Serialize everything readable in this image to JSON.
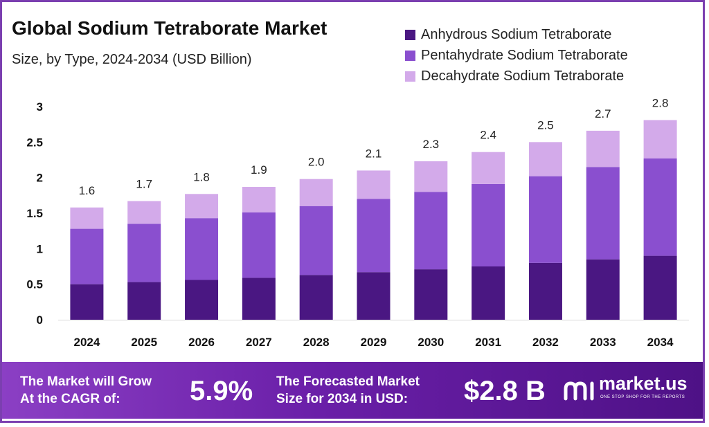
{
  "title": "Global Sodium Tetraborate Market",
  "subtitle": "Size, by Type, 2024-2034 (USD Billion)",
  "chart_data": {
    "type": "bar",
    "stacked": true,
    "categories": [
      "2024",
      "2025",
      "2026",
      "2027",
      "2028",
      "2029",
      "2030",
      "2031",
      "2032",
      "2033",
      "2034"
    ],
    "series": [
      {
        "name": "Anhydrous Sodium Tetraborate",
        "color": "#4a1782",
        "values": [
          0.5,
          0.53,
          0.56,
          0.59,
          0.63,
          0.67,
          0.71,
          0.75,
          0.8,
          0.85,
          0.9
        ]
      },
      {
        "name": "Pentahydrate Sodium Tetraborate",
        "color": "#8a4fcf",
        "values": [
          0.78,
          0.82,
          0.87,
          0.92,
          0.97,
          1.03,
          1.09,
          1.16,
          1.22,
          1.3,
          1.37
        ]
      },
      {
        "name": "Decahydrate Sodium Tetraborate",
        "color": "#d3aaea",
        "values": [
          0.3,
          0.32,
          0.34,
          0.36,
          0.38,
          0.4,
          0.43,
          0.45,
          0.48,
          0.51,
          0.54
        ]
      }
    ],
    "total_labels": [
      "1.6",
      "1.7",
      "1.8",
      "1.9",
      "2.0",
      "2.1",
      "2.3",
      "2.4",
      "2.5",
      "2.7",
      "2.8"
    ],
    "y_ticks": [
      "0",
      "0.5",
      "1",
      "1.5",
      "2",
      "2.5",
      "3"
    ],
    "ylim": [
      0,
      3
    ],
    "grid": false,
    "legend_position": "top-right"
  },
  "footer": {
    "cagr_text_line1": "The Market will Grow",
    "cagr_text_line2": "At the CAGR of:",
    "cagr_value": "5.9%",
    "forecast_text_line1": "The Forecasted Market",
    "forecast_text_line2": "Size for 2034 in USD:",
    "forecast_value": "$2.8 B",
    "brand_name": "market.us",
    "brand_tagline": "ONE STOP SHOP FOR THE REPORTS"
  }
}
